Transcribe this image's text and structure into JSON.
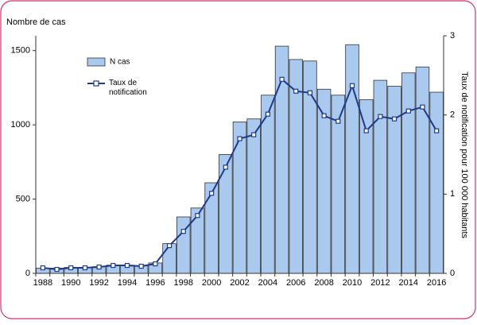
{
  "chart_data": {
    "type": "bar-line",
    "y_label": "Nombre de cas",
    "y2_label": "Taux de notification pour 100 000 habitants",
    "categories": [
      "1988",
      null,
      "1990",
      null,
      "1992",
      null,
      "1994",
      null,
      "1996",
      null,
      "1998",
      null,
      "2000",
      null,
      "2002",
      null,
      "2004",
      null,
      "2006",
      null,
      "2008",
      null,
      "2010",
      null,
      "2012",
      null,
      "2014",
      null,
      "2016"
    ],
    "series": [
      {
        "name": "N cas",
        "type": "bar",
        "color": "#a9c9ee",
        "values": [
          35,
          35,
          40,
          40,
          45,
          55,
          55,
          50,
          70,
          200,
          380,
          440,
          610,
          800,
          1020,
          1040,
          1200,
          1530,
          1440,
          1430,
          1240,
          1200,
          1540,
          1170,
          1300,
          1260,
          1350,
          1390,
          1220
        ]
      },
      {
        "name": "Taux de notification",
        "type": "line",
        "axis": "y2",
        "color": "#1f3a8a",
        "values": [
          0.07,
          0.05,
          0.07,
          0.07,
          0.08,
          0.1,
          0.1,
          0.09,
          0.12,
          0.35,
          0.53,
          0.73,
          1.01,
          1.34,
          1.7,
          1.75,
          2.01,
          2.45,
          2.3,
          2.28,
          1.99,
          1.92,
          2.37,
          1.8,
          1.98,
          1.95,
          2.05,
          2.1,
          1.8
        ]
      }
    ],
    "ylim": [
      0,
      1600
    ],
    "yticks": [
      0,
      500,
      1000,
      1500
    ],
    "y2lim": [
      0,
      3
    ],
    "y2ticks": [
      0,
      1,
      2,
      3
    ]
  }
}
